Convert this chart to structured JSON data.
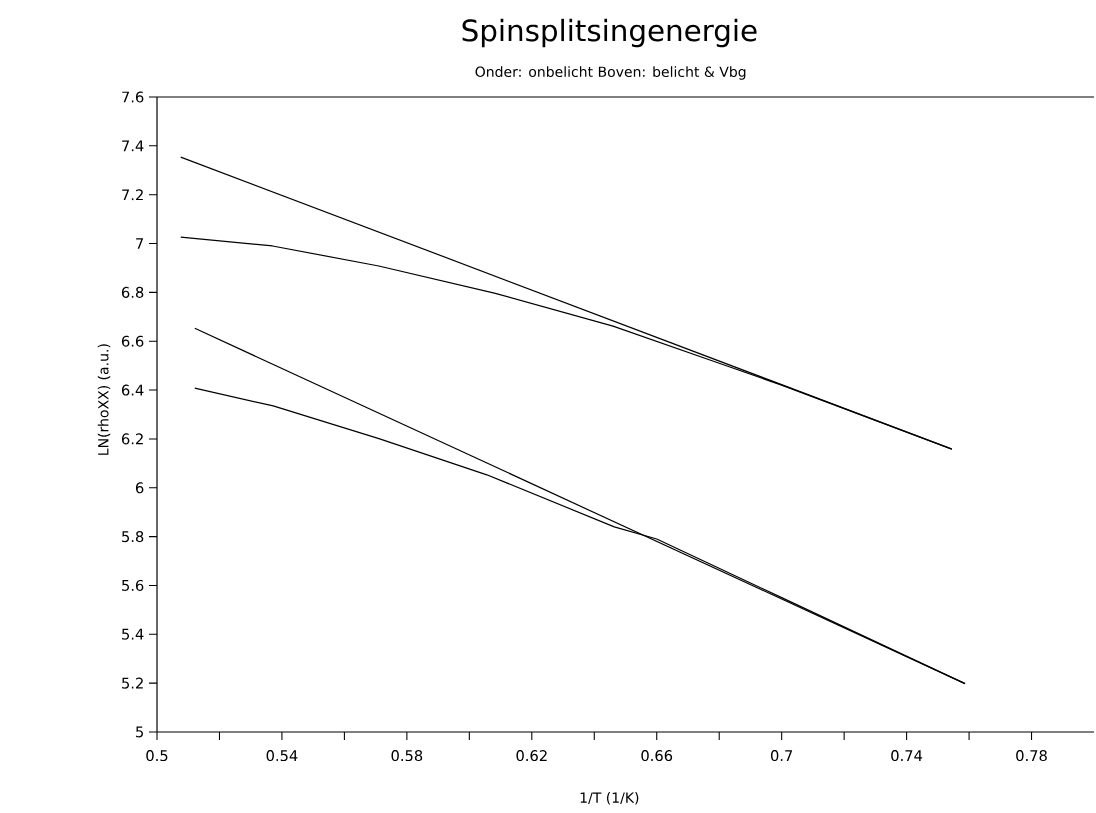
{
  "chart_data": {
    "type": "line",
    "title": "Spinsplitsingenergie",
    "subtitle": "Onder: onbelicht   Boven: belicht & Vbg",
    "xlabel": "1/T (1/K)",
    "ylabel": "LN(rhoXX) (a.u.)",
    "series": [
      {
        "color": "#000000",
        "x": [
          0.5076,
          0.7545
        ],
        "values": [
          7.354,
          6.158
        ]
      },
      {
        "color": "#000000",
        "x": [
          0.5076,
          0.537,
          0.571,
          0.608,
          0.646,
          0.68,
          0.7,
          0.7545
        ],
        "values": [
          7.026,
          6.99,
          6.908,
          6.797,
          6.662,
          6.51,
          6.42,
          6.158
        ]
      },
      {
        "color": "#000000",
        "x": [
          0.5121,
          0.7587
        ],
        "values": [
          6.653,
          5.198
        ]
      },
      {
        "color": "#000000",
        "x": [
          0.5121,
          0.5372,
          0.5713,
          0.6056,
          0.6464,
          0.66,
          0.7,
          0.7587
        ],
        "values": [
          6.408,
          6.335,
          6.2,
          6.053,
          5.84,
          5.79,
          5.55,
          5.198
        ]
      }
    ],
    "xlim": [
      0.5,
      0.8
    ],
    "ylim": [
      5,
      7.6
    ],
    "xticks": [
      0.5,
      {
        "value": 0.52,
        "label": null
      },
      0.54,
      {
        "value": 0.56,
        "label": null
      },
      0.58,
      {
        "value": 0.6,
        "label": null
      },
      0.62,
      {
        "value": 0.64,
        "label": null
      },
      0.66,
      {
        "value": 0.68,
        "label": null
      },
      0.7,
      {
        "value": 0.72,
        "label": null
      },
      0.74,
      {
        "value": 0.76,
        "label": null
      },
      0.78
    ],
    "yticks": [
      5,
      5.2,
      5.4,
      5.6,
      5.8,
      6,
      6.2,
      6.4,
      6.6,
      6.8,
      7,
      7.2,
      7.4,
      7.6
    ],
    "grid": false,
    "legend": false,
    "marker": "none",
    "line_style": "solid"
  }
}
